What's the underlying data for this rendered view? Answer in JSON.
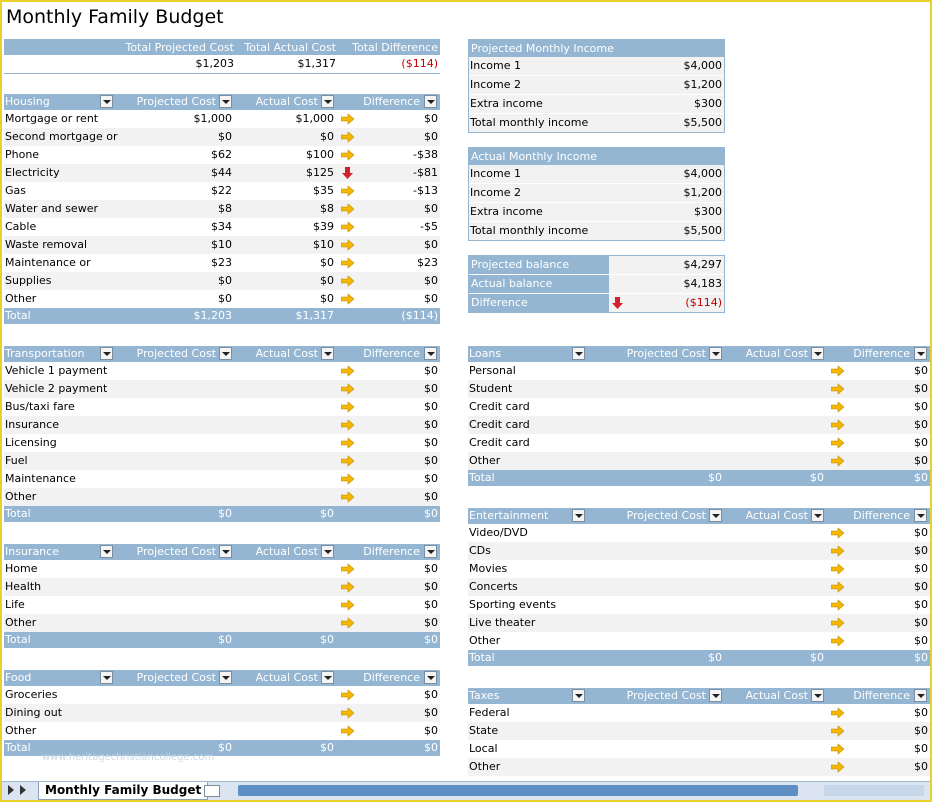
{
  "title": "Monthly Family Budget",
  "summary": {
    "headers": [
      "Total Projected Cost",
      "Total Actual Cost",
      "Total Difference"
    ],
    "values": [
      "$1,203",
      "$1,317",
      "($114)"
    ]
  },
  "projected_income": {
    "title": "Projected Monthly Income",
    "rows": [
      [
        "Income 1",
        "$4,000"
      ],
      [
        "Income 2",
        "$1,200"
      ],
      [
        "Extra income",
        "$300"
      ],
      [
        "Total monthly income",
        "$5,500"
      ]
    ]
  },
  "actual_income": {
    "title": "Actual Monthly Income",
    "rows": [
      [
        "Income 1",
        "$4,000"
      ],
      [
        "Income 2",
        "$1,200"
      ],
      [
        "Extra income",
        "$300"
      ],
      [
        "Total monthly income",
        "$5,500"
      ]
    ]
  },
  "balance": [
    {
      "label": "Projected balance",
      "value": "$4,297"
    },
    {
      "label": "Actual balance",
      "value": "$4,183"
    },
    {
      "label": "Difference",
      "value": "($114)"
    }
  ],
  "col_headers": {
    "projected": "Projected Cost",
    "actual": "Actual Cost",
    "difference": "Difference"
  },
  "total_label": "Total",
  "colors": {
    "header": "#94b6d2",
    "arrow_right": "#f5b800",
    "arrow_down": "#d4202a",
    "negative": "#c00000"
  },
  "sections": {
    "housing": {
      "title": "Housing",
      "rows": [
        {
          "label": "Mortgage or rent",
          "proj": "$1,000",
          "act": "$1,000",
          "icon": "arrow-right",
          "diff": "$0"
        },
        {
          "label": "Second mortgage or",
          "proj": "$0",
          "act": "$0",
          "icon": "arrow-right",
          "diff": "$0"
        },
        {
          "label": "Phone",
          "proj": "$62",
          "act": "$100",
          "icon": "arrow-right",
          "diff": "-$38"
        },
        {
          "label": "Electricity",
          "proj": "$44",
          "act": "$125",
          "icon": "arrow-down",
          "diff": "-$81"
        },
        {
          "label": "Gas",
          "proj": "$22",
          "act": "$35",
          "icon": "arrow-right",
          "diff": "-$13"
        },
        {
          "label": "Water and sewer",
          "proj": "$8",
          "act": "$8",
          "icon": "arrow-right",
          "diff": "$0"
        },
        {
          "label": "Cable",
          "proj": "$34",
          "act": "$39",
          "icon": "arrow-right",
          "diff": "-$5"
        },
        {
          "label": "Waste removal",
          "proj": "$10",
          "act": "$10",
          "icon": "arrow-right",
          "diff": "$0"
        },
        {
          "label": "Maintenance or",
          "proj": "$23",
          "act": "$0",
          "icon": "arrow-right",
          "diff": "$23"
        },
        {
          "label": "Supplies",
          "proj": "$0",
          "act": "$0",
          "icon": "arrow-right",
          "diff": "$0"
        },
        {
          "label": "Other",
          "proj": "$0",
          "act": "$0",
          "icon": "arrow-right",
          "diff": "$0"
        }
      ],
      "total": {
        "proj": "$1,203",
        "act": "$1,317",
        "diff": "($114)"
      }
    },
    "transportation": {
      "title": "Transportation",
      "rows": [
        {
          "label": "Vehicle 1 payment",
          "diff": "$0"
        },
        {
          "label": "Vehicle 2 payment",
          "diff": "$0"
        },
        {
          "label": "Bus/taxi fare",
          "diff": "$0"
        },
        {
          "label": "Insurance",
          "diff": "$0"
        },
        {
          "label": "Licensing",
          "diff": "$0"
        },
        {
          "label": "Fuel",
          "diff": "$0"
        },
        {
          "label": "Maintenance",
          "diff": "$0"
        },
        {
          "label": "Other",
          "diff": "$0"
        }
      ],
      "total": {
        "proj": "$0",
        "act": "$0",
        "diff": "$0"
      }
    },
    "insurance": {
      "title": "Insurance",
      "rows": [
        {
          "label": "Home",
          "diff": "$0"
        },
        {
          "label": "Health",
          "diff": "$0"
        },
        {
          "label": "Life",
          "diff": "$0"
        },
        {
          "label": "Other",
          "diff": "$0"
        }
      ],
      "total": {
        "proj": "$0",
        "act": "$0",
        "diff": "$0"
      }
    },
    "food": {
      "title": "Food",
      "rows": [
        {
          "label": "Groceries",
          "diff": "$0"
        },
        {
          "label": "Dining out",
          "diff": "$0"
        },
        {
          "label": "Other",
          "diff": "$0"
        }
      ],
      "total": {
        "proj": "$0",
        "act": "$0",
        "diff": "$0"
      }
    },
    "loans": {
      "title": "Loans",
      "rows": [
        {
          "label": "Personal",
          "diff": "$0"
        },
        {
          "label": "Student",
          "diff": "$0"
        },
        {
          "label": "Credit card",
          "diff": "$0"
        },
        {
          "label": "Credit card",
          "diff": "$0"
        },
        {
          "label": "Credit card",
          "diff": "$0"
        },
        {
          "label": "Other",
          "diff": "$0"
        }
      ],
      "total": {
        "proj": "$0",
        "act": "$0",
        "diff": "$0"
      }
    },
    "entertainment": {
      "title": "Entertainment",
      "rows": [
        {
          "label": "Video/DVD",
          "diff": "$0"
        },
        {
          "label": "CDs",
          "diff": "$0"
        },
        {
          "label": "Movies",
          "diff": "$0"
        },
        {
          "label": "Concerts",
          "diff": "$0"
        },
        {
          "label": "Sporting events",
          "diff": "$0"
        },
        {
          "label": "Live theater",
          "diff": "$0"
        },
        {
          "label": "Other",
          "diff": "$0"
        }
      ],
      "total": {
        "proj": "$0",
        "act": "$0",
        "diff": "$0"
      }
    },
    "taxes": {
      "title": "Taxes",
      "rows": [
        {
          "label": "Federal",
          "diff": "$0"
        },
        {
          "label": "State",
          "diff": "$0"
        },
        {
          "label": "Local",
          "diff": "$0"
        },
        {
          "label": "Other",
          "diff": "$0"
        }
      ]
    }
  },
  "watermark": "www.heritagechristiancollege.com",
  "sheet_tab": "Monthly Family Budget"
}
